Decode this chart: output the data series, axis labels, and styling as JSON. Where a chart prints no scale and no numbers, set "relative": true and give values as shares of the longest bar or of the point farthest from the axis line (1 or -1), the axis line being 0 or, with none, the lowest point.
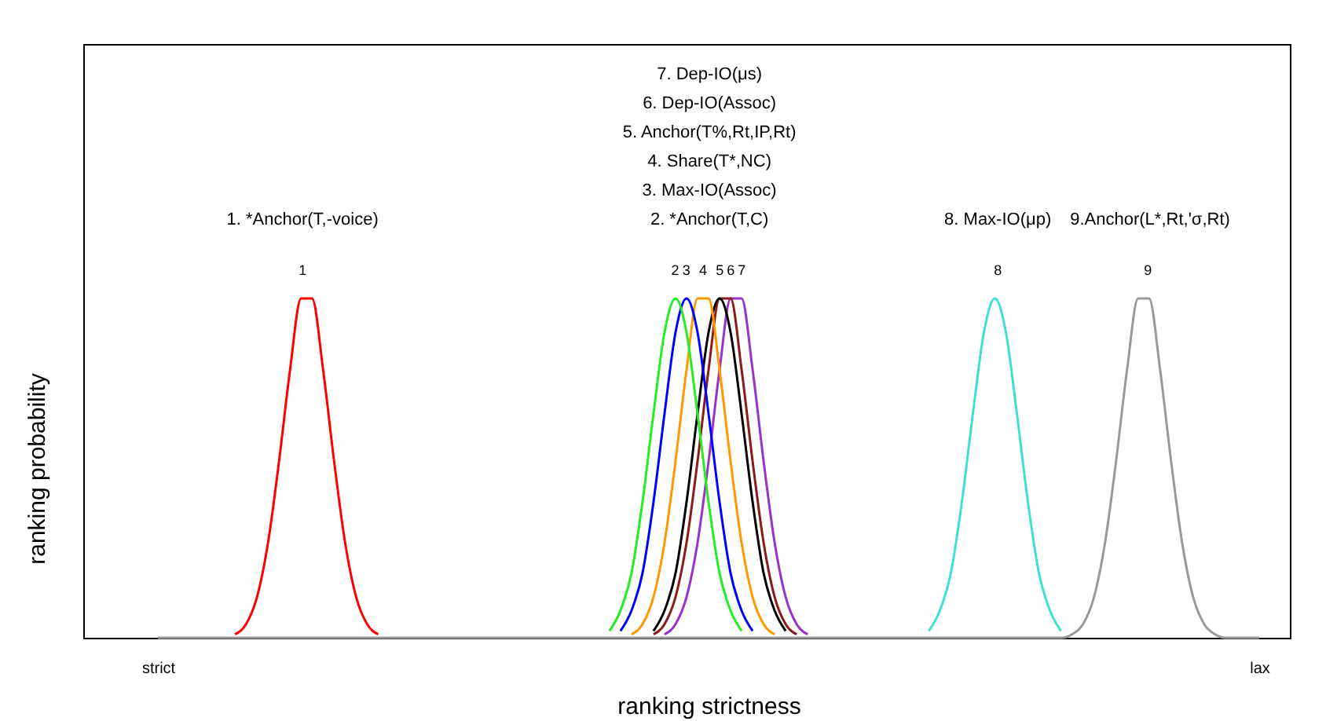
{
  "chart_data": {
    "type": "line",
    "relative": true,
    "xlabel": "ranking strictness",
    "ylabel": "ranking probability",
    "grid": false,
    "legend": false,
    "marker": "none",
    "line_style": "solid",
    "categories": [
      "strict",
      null,
      null,
      null,
      null,
      null,
      null,
      null,
      null,
      null,
      null,
      null,
      null,
      null,
      null,
      null,
      null,
      null,
      null,
      null,
      null,
      null,
      null,
      null,
      null,
      null,
      null,
      null,
      null,
      null,
      null,
      null,
      null,
      null,
      null,
      null,
      null,
      null,
      null,
      null,
      null,
      null,
      null,
      null,
      null,
      null,
      null,
      null,
      null,
      null,
      null,
      null,
      null,
      null,
      null,
      null,
      null,
      null,
      null,
      null,
      null,
      null,
      null,
      null,
      null,
      null,
      null,
      null,
      null,
      null,
      null,
      null,
      null,
      null,
      null,
      null,
      null,
      null,
      null,
      null,
      null,
      null,
      null,
      null,
      null,
      null,
      null,
      null,
      null,
      null,
      null,
      null,
      null,
      null,
      null,
      null,
      null,
      null,
      null,
      null,
      "lax"
    ],
    "series": [
      {
        "name": "1",
        "color": "#ff0000",
        "values": [
          null,
          null,
          null,
          null,
          null,
          null,
          null,
          0.01,
          0.04,
          0.12,
          0.28,
          0.52,
          0.79,
          1,
          1,
          0.79,
          0.52,
          0.28,
          0.12,
          0.04,
          0.01,
          null,
          null,
          null,
          null,
          null,
          null,
          null,
          null,
          null,
          null,
          null,
          null,
          null,
          null,
          null,
          null,
          null,
          null,
          null,
          null,
          null,
          null,
          null,
          null,
          null,
          null,
          null,
          null,
          null,
          null,
          null,
          null,
          null,
          null,
          null,
          null,
          null,
          null,
          null,
          null,
          null,
          null,
          null,
          null,
          null,
          null,
          null,
          null,
          null,
          null,
          null,
          null,
          null,
          null,
          null,
          null,
          null,
          null,
          null,
          null,
          null,
          null,
          null,
          null,
          null,
          null,
          null,
          null,
          null,
          null,
          null,
          null,
          null,
          null,
          null,
          null,
          null,
          null,
          null,
          null
        ]
      },
      {
        "name": "2",
        "color": "#22ee22",
        "values": [
          null,
          null,
          null,
          null,
          null,
          null,
          null,
          null,
          null,
          null,
          null,
          null,
          null,
          null,
          null,
          null,
          null,
          null,
          null,
          null,
          null,
          null,
          null,
          null,
          null,
          null,
          null,
          null,
          null,
          null,
          null,
          null,
          null,
          null,
          null,
          null,
          null,
          null,
          null,
          null,
          null,
          0.02,
          0.08,
          0.19,
          0.4,
          0.66,
          0.9,
          1,
          0.9,
          0.66,
          0.4,
          0.19,
          0.08,
          0.02,
          null,
          null,
          null,
          null,
          null,
          null,
          null,
          null,
          null,
          null,
          null,
          null,
          null,
          null,
          null,
          null,
          null,
          null,
          null,
          null,
          null,
          null,
          null,
          null,
          null,
          null,
          null,
          null,
          null,
          null,
          null,
          null,
          null,
          null,
          null,
          null,
          null,
          null,
          null,
          null,
          null,
          null,
          null,
          null,
          null,
          null,
          null
        ]
      },
      {
        "name": "3",
        "color": "#0000ff",
        "values": [
          null,
          null,
          null,
          null,
          null,
          null,
          null,
          null,
          null,
          null,
          null,
          null,
          null,
          null,
          null,
          null,
          null,
          null,
          null,
          null,
          null,
          null,
          null,
          null,
          null,
          null,
          null,
          null,
          null,
          null,
          null,
          null,
          null,
          null,
          null,
          null,
          null,
          null,
          null,
          null,
          null,
          null,
          0.02,
          0.08,
          0.19,
          0.4,
          0.66,
          0.9,
          1,
          0.9,
          0.66,
          0.4,
          0.19,
          0.08,
          0.02,
          null,
          null,
          null,
          null,
          null,
          null,
          null,
          null,
          null,
          null,
          null,
          null,
          null,
          null,
          null,
          null,
          null,
          null,
          null,
          null,
          null,
          null,
          null,
          null,
          null,
          null,
          null,
          null,
          null,
          null,
          null,
          null,
          null,
          null,
          null,
          null,
          null,
          null,
          null,
          null,
          null,
          null,
          null,
          null,
          null,
          null
        ]
      },
      {
        "name": "4",
        "color": "#ff9900",
        "values": [
          null,
          null,
          null,
          null,
          null,
          null,
          null,
          null,
          null,
          null,
          null,
          null,
          null,
          null,
          null,
          null,
          null,
          null,
          null,
          null,
          null,
          null,
          null,
          null,
          null,
          null,
          null,
          null,
          null,
          null,
          null,
          null,
          null,
          null,
          null,
          null,
          null,
          null,
          null,
          null,
          null,
          null,
          null,
          0.01,
          0.04,
          0.12,
          0.28,
          0.52,
          0.79,
          1,
          1,
          0.79,
          0.52,
          0.28,
          0.12,
          0.04,
          0.01,
          null,
          null,
          null,
          null,
          null,
          null,
          null,
          null,
          null,
          null,
          null,
          null,
          null,
          null,
          null,
          null,
          null,
          null,
          null,
          null,
          null,
          null,
          null,
          null,
          null,
          null,
          null,
          null,
          null,
          null,
          null,
          null,
          null,
          null,
          null,
          null,
          null,
          null,
          null,
          null,
          null,
          null,
          null,
          null
        ]
      },
      {
        "name": "5",
        "color": "#000000",
        "values": [
          null,
          null,
          null,
          null,
          null,
          null,
          null,
          null,
          null,
          null,
          null,
          null,
          null,
          null,
          null,
          null,
          null,
          null,
          null,
          null,
          null,
          null,
          null,
          null,
          null,
          null,
          null,
          null,
          null,
          null,
          null,
          null,
          null,
          null,
          null,
          null,
          null,
          null,
          null,
          null,
          null,
          null,
          null,
          null,
          null,
          0.02,
          0.08,
          0.19,
          0.4,
          0.66,
          0.9,
          1,
          0.9,
          0.66,
          0.4,
          0.19,
          0.08,
          0.02,
          null,
          null,
          null,
          null,
          null,
          null,
          null,
          null,
          null,
          null,
          null,
          null,
          null,
          null,
          null,
          null,
          null,
          null,
          null,
          null,
          null,
          null,
          null,
          null,
          null,
          null,
          null,
          null,
          null,
          null,
          null,
          null,
          null,
          null,
          null,
          null,
          null,
          null,
          null,
          null,
          null,
          null,
          null
        ]
      },
      {
        "name": "6",
        "color": "#8b1a1a",
        "values": [
          null,
          null,
          null,
          null,
          null,
          null,
          null,
          null,
          null,
          null,
          null,
          null,
          null,
          null,
          null,
          null,
          null,
          null,
          null,
          null,
          null,
          null,
          null,
          null,
          null,
          null,
          null,
          null,
          null,
          null,
          null,
          null,
          null,
          null,
          null,
          null,
          null,
          null,
          null,
          null,
          null,
          null,
          null,
          null,
          null,
          0.01,
          0.04,
          0.12,
          0.28,
          0.52,
          0.79,
          1,
          1,
          0.79,
          0.52,
          0.28,
          0.12,
          0.04,
          0.01,
          null,
          null,
          null,
          null,
          null,
          null,
          null,
          null,
          null,
          null,
          null,
          null,
          null,
          null,
          null,
          null,
          null,
          null,
          null,
          null,
          null,
          null,
          null,
          null,
          null,
          null,
          null,
          null,
          null,
          null,
          null,
          null,
          null,
          null,
          null,
          null,
          null,
          null,
          null,
          null,
          null,
          null
        ]
      },
      {
        "name": "7",
        "color": "#9932cc",
        "values": [
          null,
          null,
          null,
          null,
          null,
          null,
          null,
          null,
          null,
          null,
          null,
          null,
          null,
          null,
          null,
          null,
          null,
          null,
          null,
          null,
          null,
          null,
          null,
          null,
          null,
          null,
          null,
          null,
          null,
          null,
          null,
          null,
          null,
          null,
          null,
          null,
          null,
          null,
          null,
          null,
          null,
          null,
          null,
          null,
          null,
          null,
          0.01,
          0.04,
          0.12,
          0.28,
          0.52,
          0.79,
          1,
          1,
          0.79,
          0.52,
          0.28,
          0.12,
          0.04,
          0.01,
          null,
          null,
          null,
          null,
          null,
          null,
          null,
          null,
          null,
          null,
          null,
          null,
          null,
          null,
          null,
          null,
          null,
          null,
          null,
          null,
          null,
          null,
          null,
          null,
          null,
          null,
          null,
          null,
          null,
          null,
          null,
          null,
          null,
          null,
          null,
          null,
          null,
          null,
          null,
          null,
          null
        ]
      },
      {
        "name": "8",
        "color": "#40e0d0",
        "values": [
          null,
          null,
          null,
          null,
          null,
          null,
          null,
          null,
          null,
          null,
          null,
          null,
          null,
          null,
          null,
          null,
          null,
          null,
          null,
          null,
          null,
          null,
          null,
          null,
          null,
          null,
          null,
          null,
          null,
          null,
          null,
          null,
          null,
          null,
          null,
          null,
          null,
          null,
          null,
          null,
          null,
          null,
          null,
          null,
          null,
          null,
          null,
          null,
          null,
          null,
          null,
          null,
          null,
          null,
          null,
          null,
          null,
          null,
          null,
          null,
          null,
          null,
          null,
          null,
          null,
          null,
          null,
          null,
          null,
          null,
          0.02,
          0.08,
          0.19,
          0.4,
          0.66,
          0.9,
          1,
          0.9,
          0.66,
          0.4,
          0.19,
          0.08,
          0.02,
          null,
          null,
          null,
          null,
          null,
          null,
          null,
          null,
          null,
          null,
          null,
          null,
          null,
          null,
          null,
          null,
          null,
          null
        ]
      },
      {
        "name": "9",
        "color": "#999999",
        "values": [
          0,
          0,
          0,
          0,
          0,
          0,
          0,
          0,
          0,
          0,
          0,
          0,
          0,
          0,
          0,
          0,
          0,
          0,
          0,
          0,
          0,
          0,
          0,
          0,
          0,
          0,
          0,
          0,
          0,
          0,
          0,
          0,
          0,
          0,
          0,
          0,
          0,
          0,
          0,
          0,
          0,
          0,
          0,
          0,
          0,
          0,
          0,
          0,
          0,
          0,
          0,
          0,
          0,
          0,
          0,
          0,
          0,
          0,
          0,
          0,
          0,
          0,
          0,
          0,
          0,
          0,
          0,
          0,
          0,
          0,
          0,
          0,
          0,
          0,
          0,
          0,
          0,
          0,
          0,
          0,
          0,
          0,
          0,
          0.01,
          0.04,
          0.12,
          0.28,
          0.52,
          0.79,
          1,
          1,
          0.79,
          0.52,
          0.28,
          0.12,
          0.04,
          0.01,
          0,
          0,
          0,
          0
        ]
      }
    ],
    "annotations": [
      "1. *Anchor(T,-voice)",
      "2. *Anchor(T,C)",
      "3. Max-IO(Assoc)",
      "4. Share(T*,NC)",
      "5. Anchor(T%,Rt,IP,Rt)",
      "6. Dep-IO(Assoc)",
      "7. Dep-IO(μs)",
      "8. Max-IO(μp)",
      "9.Anchor(L*,Rt,'σ,Rt)"
    ]
  }
}
